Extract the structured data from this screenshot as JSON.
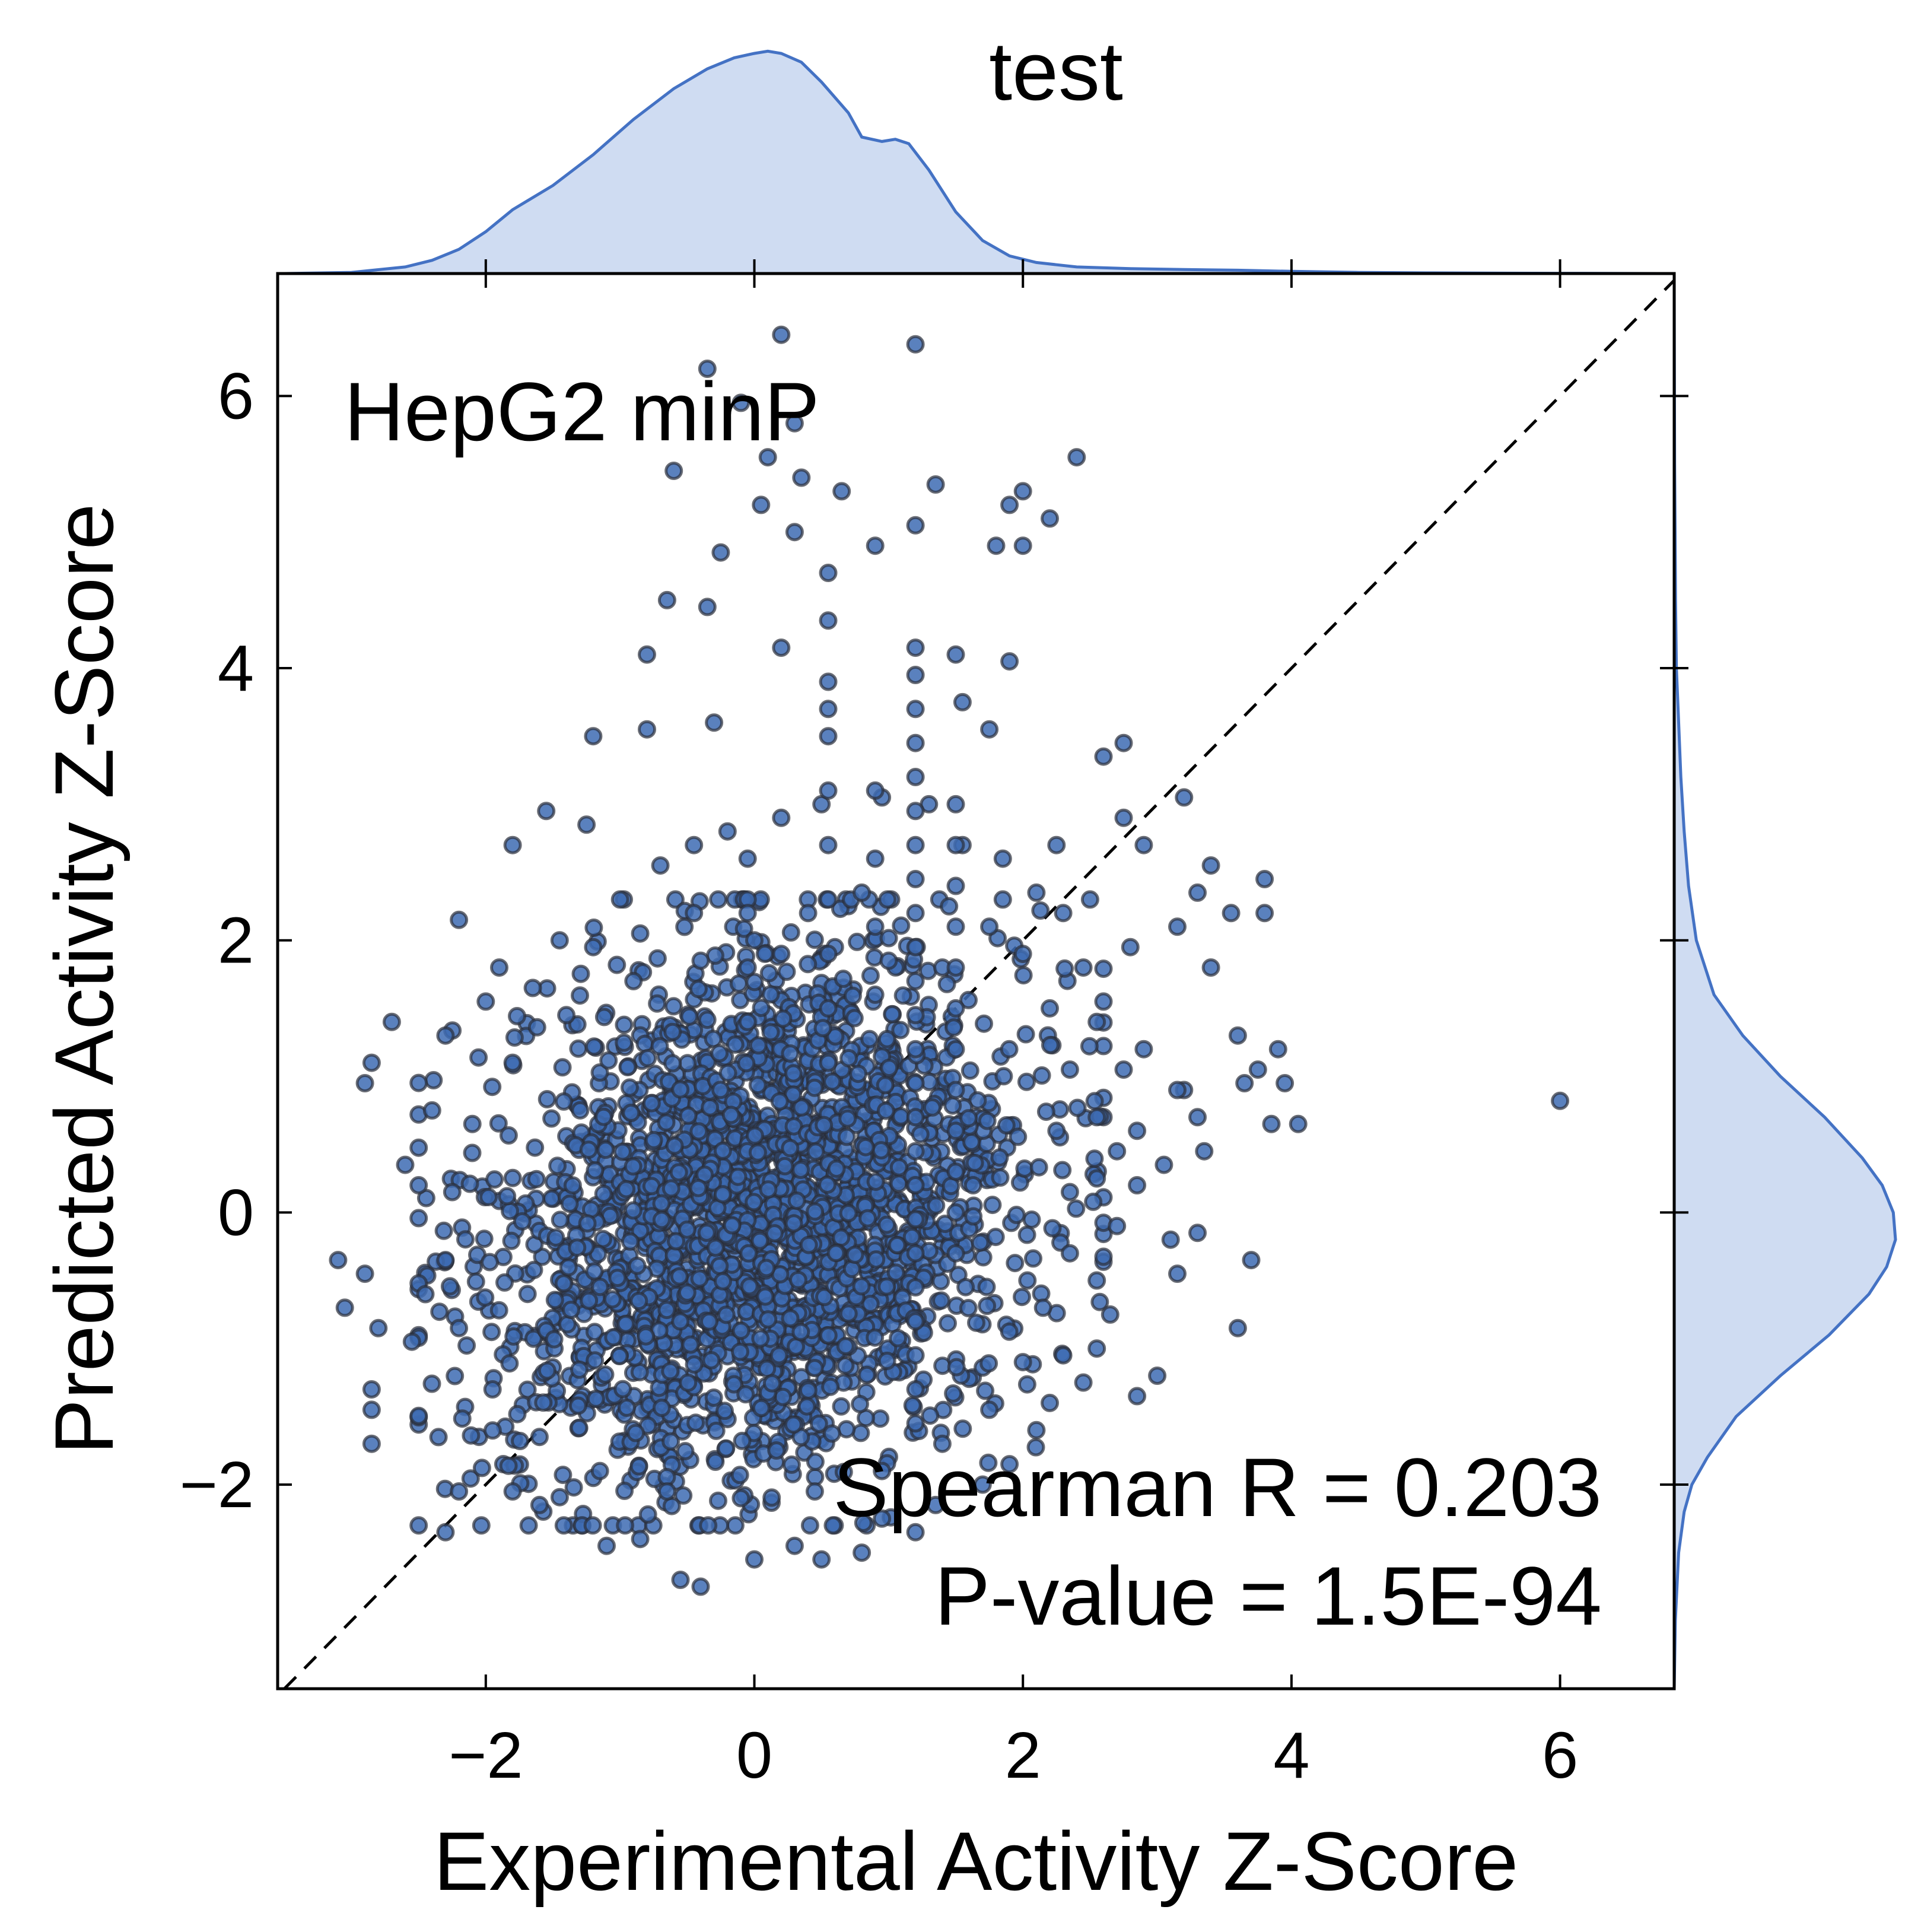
{
  "chart_data": {
    "type": "scatter",
    "title": "test",
    "subtitle": "",
    "annotation_label": "HepG2 minP",
    "stats": {
      "spearman_text": "Spearman R = 0.203",
      "pvalue_text": "P-value = 1.5E-94"
    },
    "xlabel": "Experimental Activity Z-Score",
    "ylabel": "Predicted Activity Z-Score",
    "xlim": [
      -3.55,
      6.85
    ],
    "ylim": [
      -3.5,
      6.9
    ],
    "xticks": [
      -2,
      0,
      2,
      4,
      6
    ],
    "yticks": [
      -2,
      0,
      2,
      4,
      6
    ],
    "xtick_labels": [
      "−2",
      "0",
      "2",
      "4",
      "6"
    ],
    "ytick_labels": [
      "−2",
      "0",
      "2",
      "4",
      "6"
    ],
    "identity_line": true,
    "grid": false,
    "legend": "none",
    "colors": {
      "point_fill": "#3d6bb3",
      "point_edge": "#2b2f3a",
      "kde_line": "#4472c4",
      "kde_fill": "#cfdcf2",
      "axis": "#000000"
    },
    "series": [
      {
        "points": [
          [
            0.2,
            6.45
          ],
          [
            1.2,
            6.38
          ],
          [
            -0.35,
            6.2
          ],
          [
            -0.1,
            5.95
          ],
          [
            0.3,
            5.8
          ],
          [
            -0.6,
            5.45
          ],
          [
            0.1,
            5.55
          ],
          [
            0.35,
            5.4
          ],
          [
            0.65,
            5.3
          ],
          [
            1.35,
            5.35
          ],
          [
            2.4,
            5.55
          ],
          [
            2.0,
            5.3
          ],
          [
            1.9,
            5.2
          ],
          [
            0.05,
            5.2
          ],
          [
            1.2,
            5.05
          ],
          [
            2.2,
            5.1
          ],
          [
            0.3,
            5.0
          ],
          [
            0.9,
            4.9
          ],
          [
            1.8,
            4.9
          ],
          [
            2.0,
            4.9
          ],
          [
            -0.25,
            4.85
          ],
          [
            0.55,
            4.7
          ],
          [
            -0.65,
            4.5
          ],
          [
            -0.35,
            4.45
          ],
          [
            0.55,
            4.35
          ],
          [
            -0.8,
            4.1
          ],
          [
            0.2,
            4.15
          ],
          [
            1.2,
            4.15
          ],
          [
            1.5,
            4.1
          ],
          [
            1.9,
            4.05
          ],
          [
            -1.2,
            3.5
          ],
          [
            -0.8,
            3.55
          ],
          [
            -0.3,
            3.6
          ],
          [
            0.55,
            3.7
          ],
          [
            1.55,
            3.75
          ],
          [
            1.75,
            3.55
          ],
          [
            2.6,
            3.35
          ],
          [
            2.75,
            3.45
          ],
          [
            3.2,
            3.05
          ],
          [
            -1.25,
            2.85
          ],
          [
            -1.55,
            2.95
          ],
          [
            -1.8,
            2.7
          ],
          [
            2.75,
            2.9
          ],
          [
            2.9,
            2.7
          ],
          [
            -2.2,
            2.15
          ],
          [
            3.4,
            2.55
          ],
          [
            3.3,
            2.35
          ],
          [
            3.8,
            2.45
          ],
          [
            3.8,
            2.2
          ],
          [
            3.55,
            2.2
          ],
          [
            3.15,
            2.1
          ],
          [
            3.4,
            1.8
          ],
          [
            2.8,
            1.95
          ],
          [
            3.6,
            1.3
          ],
          [
            3.9,
            1.2
          ],
          [
            3.75,
            1.05
          ],
          [
            3.65,
            0.95
          ],
          [
            3.2,
            0.9
          ],
          [
            3.85,
            0.65
          ],
          [
            4.05,
            0.65
          ],
          [
            3.95,
            0.95
          ],
          [
            3.3,
            0.7
          ],
          [
            3.15,
            0.9
          ],
          [
            2.85,
            0.6
          ],
          [
            3.35,
            0.45
          ],
          [
            3.05,
            0.35
          ],
          [
            2.85,
            0.2
          ],
          [
            6.0,
            0.82
          ],
          [
            3.6,
            -0.85
          ],
          [
            3.1,
            -0.2
          ],
          [
            3.3,
            -0.15
          ],
          [
            3.15,
            -0.45
          ],
          [
            3.7,
            -0.35
          ],
          [
            3.0,
            -1.2
          ],
          [
            2.85,
            -1.35
          ],
          [
            -2.7,
            1.4
          ],
          [
            -2.85,
            1.1
          ],
          [
            -2.9,
            0.95
          ],
          [
            -3.1,
            -0.35
          ],
          [
            -3.05,
            -0.7
          ],
          [
            -2.9,
            -0.45
          ],
          [
            -2.8,
            -0.85
          ],
          [
            -2.85,
            -1.3
          ],
          [
            -2.85,
            -1.45
          ],
          [
            -2.85,
            -1.7
          ],
          [
            -2.3,
            -2.35
          ],
          [
            -2.2,
            -2.05
          ],
          [
            -1.8,
            -2.05
          ],
          [
            -1.6,
            -2.15
          ],
          [
            -0.55,
            -2.7
          ],
          [
            -0.4,
            -2.75
          ],
          [
            0.0,
            -2.55
          ],
          [
            0.3,
            -2.45
          ],
          [
            0.5,
            -2.55
          ],
          [
            -1.1,
            -2.45
          ],
          [
            -0.85,
            -2.4
          ],
          [
            0.95,
            -2.25
          ],
          [
            1.35,
            -2.15
          ],
          [
            -2.6,
            0.35
          ],
          [
            -2.5,
            0.2
          ],
          [
            -2.45,
            -0.6
          ],
          [
            -2.55,
            -0.95
          ],
          [
            -2.4,
            0.75
          ],
          [
            -2.3,
            1.3
          ],
          [
            -2.0,
            1.55
          ],
          [
            -1.9,
            1.8
          ],
          [
            2.1,
            2.35
          ],
          [
            2.3,
            2.2
          ],
          [
            2.5,
            2.3
          ],
          [
            2.45,
            1.8
          ],
          [
            2.6,
            1.55
          ],
          [
            2.55,
            1.4
          ],
          [
            2.9,
            1.2
          ],
          [
            2.75,
            1.05
          ],
          [
            2.55,
            0.7
          ],
          [
            2.7,
            0.45
          ],
          [
            2.55,
            0.25
          ],
          [
            2.7,
            -0.1
          ],
          [
            2.55,
            -0.5
          ],
          [
            2.65,
            -0.75
          ],
          [
            2.55,
            -1.0
          ],
          [
            2.45,
            -1.25
          ],
          [
            2.3,
            -1.05
          ],
          [
            2.2,
            -1.4
          ],
          [
            2.1,
            -1.6
          ],
          [
            1.9,
            -1.85
          ],
          [
            1.7,
            -2.0
          ],
          [
            1.2,
            -2.35
          ],
          [
            0.8,
            -2.5
          ],
          [
            -1.0,
            2.3
          ],
          [
            -0.7,
            2.55
          ],
          [
            -0.45,
            2.7
          ],
          [
            -0.2,
            2.8
          ],
          [
            0.2,
            2.9
          ],
          [
            0.5,
            3.0
          ],
          [
            0.95,
            3.05
          ],
          [
            1.3,
            3.0
          ],
          [
            1.55,
            2.7
          ],
          [
            1.85,
            2.6
          ],
          [
            2.25,
            2.7
          ],
          [
            -0.45,
            2.2
          ],
          [
            -0.05,
            2.3
          ],
          [
            0.4,
            2.2
          ],
          [
            0.8,
            2.35
          ],
          [
            1.45,
            2.25
          ],
          [
            1.75,
            2.1
          ],
          [
            2.0,
            1.9
          ],
          [
            -1.45,
            2.0
          ],
          [
            -1.65,
            1.65
          ],
          [
            -1.2,
            1.95
          ],
          [
            -0.85,
            2.05
          ],
          [
            0.0,
            2.0
          ],
          [
            0.6,
            1.95
          ],
          [
            1.0,
            1.85
          ],
          [
            1.4,
            1.8
          ],
          [
            2.2,
            1.5
          ],
          [
            2.35,
            1.05
          ],
          [
            2.25,
            0.6
          ],
          [
            2.35,
            0.15
          ],
          [
            2.35,
            -0.3
          ],
          [
            2.15,
            -0.7
          ],
          [
            2.0,
            -1.1
          ],
          [
            1.75,
            -1.45
          ],
          [
            1.4,
            -1.7
          ],
          [
            0.95,
            -1.9
          ],
          [
            0.45,
            -2.05
          ],
          [
            -0.1,
            -2.1
          ],
          [
            -0.65,
            -2.05
          ],
          [
            -1.15,
            -1.9
          ],
          [
            -1.6,
            -1.65
          ],
          [
            -1.95,
            -1.3
          ],
          [
            -2.2,
            -0.85
          ],
          [
            -2.3,
            -0.35
          ],
          [
            -2.25,
            0.15
          ],
          [
            -2.1,
            0.65
          ],
          [
            -1.8,
            1.1
          ],
          [
            -1.4,
            1.45
          ],
          [
            -0.9,
            1.7
          ],
          [
            -0.4,
            1.85
          ],
          [
            0.2,
            1.9
          ],
          [
            1.2,
            3.95
          ],
          [
            1.2,
            3.7
          ],
          [
            1.2,
            3.45
          ],
          [
            1.2,
            3.2
          ],
          [
            1.2,
            2.95
          ],
          [
            1.2,
            2.7
          ],
          [
            1.2,
            2.45
          ],
          [
            1.2,
            2.2
          ],
          [
            1.2,
            1.95
          ],
          [
            1.2,
            1.7
          ],
          [
            1.2,
            1.45
          ],
          [
            1.2,
            1.2
          ],
          [
            1.2,
            0.95
          ],
          [
            1.2,
            0.7
          ],
          [
            1.2,
            0.45
          ],
          [
            1.2,
            0.2
          ],
          [
            1.2,
            -0.05
          ],
          [
            1.2,
            -0.3
          ],
          [
            1.2,
            -0.55
          ],
          [
            1.2,
            -0.8
          ],
          [
            1.2,
            -1.05
          ],
          [
            1.2,
            -1.3
          ],
          [
            1.2,
            -1.55
          ],
          [
            1.5,
            3.0
          ],
          [
            1.5,
            2.7
          ],
          [
            1.5,
            2.4
          ],
          [
            1.5,
            2.1
          ],
          [
            1.5,
            1.8
          ],
          [
            1.5,
            1.5
          ],
          [
            1.5,
            1.2
          ],
          [
            1.5,
            0.9
          ],
          [
            1.5,
            0.6
          ],
          [
            1.5,
            0.3
          ],
          [
            1.5,
            0.0
          ],
          [
            1.5,
            -0.3
          ],
          [
            0.55,
            3.9
          ],
          [
            0.55,
            3.5
          ],
          [
            0.55,
            3.1
          ],
          [
            0.55,
            2.7
          ],
          [
            0.55,
            2.3
          ],
          [
            0.55,
            1.9
          ],
          [
            0.55,
            1.5
          ],
          [
            0.55,
            1.1
          ],
          [
            0.9,
            3.1
          ],
          [
            0.9,
            2.6
          ],
          [
            0.9,
            2.1
          ],
          [
            0.9,
            1.6
          ],
          [
            -0.05,
            2.6
          ],
          [
            -0.05,
            2.2
          ],
          [
            -0.05,
            1.8
          ],
          [
            -0.05,
            1.4
          ]
        ]
      }
    ],
    "marginal_x_kde": {
      "x": [
        -3.5,
        -3.0,
        -2.6,
        -2.4,
        -2.2,
        -2.0,
        -1.8,
        -1.5,
        -1.2,
        -0.9,
        -0.6,
        -0.35,
        -0.15,
        0.0,
        0.1,
        0.2,
        0.35,
        0.5,
        0.7,
        0.8,
        0.95,
        1.05,
        1.15,
        1.3,
        1.5,
        1.7,
        1.9,
        2.1,
        2.4,
        2.8,
        3.2,
        3.6,
        4.0,
        4.5,
        5.0,
        6.0,
        6.85
      ],
      "density": [
        0.0,
        0.005,
        0.03,
        0.06,
        0.11,
        0.19,
        0.29,
        0.4,
        0.54,
        0.7,
        0.84,
        0.93,
        0.98,
        1.0,
        1.01,
        1.0,
        0.96,
        0.87,
        0.73,
        0.62,
        0.6,
        0.61,
        0.59,
        0.47,
        0.28,
        0.15,
        0.08,
        0.05,
        0.03,
        0.022,
        0.018,
        0.015,
        0.01,
        0.005,
        0.003,
        0.001,
        0.0
      ]
    },
    "marginal_y_kde": {
      "y": [
        -3.5,
        -3.0,
        -2.5,
        -2.2,
        -2.0,
        -1.8,
        -1.5,
        -1.2,
        -0.9,
        -0.6,
        -0.4,
        -0.2,
        0.0,
        0.2,
        0.4,
        0.7,
        1.0,
        1.3,
        1.6,
        2.0,
        2.4,
        2.8,
        3.2,
        3.6,
        4.0,
        4.5,
        5.0,
        5.5,
        6.0,
        6.9
      ],
      "density": [
        0.0,
        0.005,
        0.02,
        0.045,
        0.08,
        0.15,
        0.28,
        0.48,
        0.7,
        0.88,
        0.96,
        1.0,
        0.99,
        0.94,
        0.85,
        0.68,
        0.48,
        0.31,
        0.18,
        0.1,
        0.065,
        0.045,
        0.03,
        0.02,
        0.01,
        0.006,
        0.004,
        0.002,
        0.001,
        0.0
      ]
    }
  }
}
